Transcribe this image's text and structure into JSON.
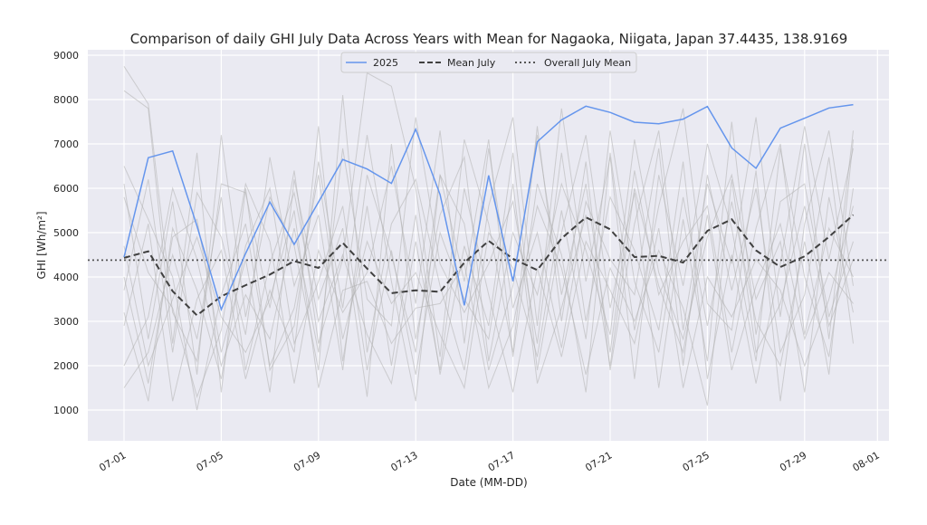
{
  "chart_data": {
    "type": "line",
    "title": "Comparison of daily GHI July Data Across Years with Mean for Nagaoka, Niigata, Japan 37.4435, 138.9169",
    "xlabel": "Date (MM-DD)",
    "ylabel": "GHI [Wh/m²]",
    "x": [
      "07-01",
      "07-02",
      "07-03",
      "07-04",
      "07-05",
      "07-06",
      "07-07",
      "07-08",
      "07-09",
      "07-10",
      "07-11",
      "07-12",
      "07-13",
      "07-14",
      "07-15",
      "07-16",
      "07-17",
      "07-18",
      "07-19",
      "07-20",
      "07-21",
      "07-22",
      "07-23",
      "07-24",
      "07-25",
      "07-26",
      "07-27",
      "07-28",
      "07-29",
      "07-30",
      "07-31"
    ],
    "x_ticks": [
      "07-01",
      "07-05",
      "07-09",
      "07-13",
      "07-17",
      "07-21",
      "07-25",
      "07-29",
      "08-01"
    ],
    "y_ticks": [
      1000,
      2000,
      3000,
      4000,
      5000,
      6000,
      7000,
      8000,
      9000
    ],
    "ylim": [
      300,
      9120
    ],
    "grid": true,
    "legend_placement": "top-center",
    "background_color": "#eaeaf2",
    "series": [
      {
        "name": "2025",
        "color": "#6495ed",
        "style": "solid",
        "values": [
          4450,
          6690,
          6840,
          5150,
          3270,
          4530,
          5690,
          4735,
          5690,
          6650,
          6435,
          6110,
          7330,
          5860,
          3360,
          6290,
          3905,
          7050,
          7540,
          7850,
          7710,
          7490,
          7455,
          7560,
          7845,
          6910,
          6450,
          7355,
          7580,
          7810,
          7885
        ]
      },
      {
        "name": "Mean July",
        "color": "#404040",
        "style": "dashed",
        "values": [
          4430,
          4580,
          3680,
          3135,
          3565,
          3815,
          4055,
          4360,
          4205,
          4770,
          4190,
          3635,
          3700,
          3665,
          4325,
          4815,
          4410,
          4155,
          4870,
          5345,
          5075,
          4450,
          4475,
          4325,
          5040,
          5300,
          4600,
          4225,
          4465,
          4905,
          5400
        ]
      }
    ],
    "reference_lines": [
      {
        "name": "Overall July Mean",
        "value": 4380,
        "color": "#555555",
        "style": "dotted"
      }
    ],
    "background_series": {
      "color": "#b0b0b0",
      "years": [
        [
          8750,
          7900,
          3200,
          2100,
          6100,
          5900,
          3300,
          6400,
          2500,
          4400,
          8600,
          8300,
          6000,
          2200,
          7100,
          5200,
          2300,
          7400,
          3000,
          6600,
          1900,
          5200,
          7300,
          2800,
          6100,
          4300,
          7600,
          3100,
          7000,
          2600,
          7300
        ],
        [
          8200,
          7800,
          2500,
          6800,
          1400,
          6000,
          1900,
          2900,
          6600,
          3300,
          7200,
          3900,
          1200,
          6300,
          3900,
          7100,
          2200,
          6100,
          4500,
          1400,
          6800,
          2800,
          5600,
          7800,
          3400,
          2800,
          6400,
          1200,
          5200,
          7300,
          3800
        ],
        [
          6100,
          2600,
          5700,
          1800,
          7200,
          3100,
          5800,
          4700,
          1900,
          8100,
          2300,
          5200,
          6200,
          3800,
          1900,
          5600,
          7600,
          2900,
          7800,
          3900,
          6700,
          1700,
          6300,
          3800,
          7000,
          5100,
          2100,
          6900,
          4000,
          2200,
          6000
        ],
        [
          4000,
          1600,
          4900,
          5300,
          2300,
          4400,
          1400,
          6200,
          3500,
          5100,
          1300,
          7000,
          2600,
          5400,
          6700,
          2100,
          5000,
          3600,
          6100,
          4600,
          2700,
          7100,
          4100,
          2600,
          4900,
          6300,
          3500,
          4800,
          1400,
          5800,
          3200
        ],
        [
          2900,
          5200,
          1200,
          3500,
          4600,
          1700,
          3700,
          2300,
          7400,
          2100,
          5600,
          2000,
          5400,
          1800,
          4700,
          2900,
          6800,
          1900,
          5000,
          7200,
          3300,
          5900,
          1500,
          5300,
          2100,
          7500,
          2700,
          5700,
          6100,
          3100,
          4800
        ],
        [
          5800,
          4100,
          3300,
          1300,
          2800,
          6100,
          4800,
          1600,
          4600,
          3200,
          4100,
          6500,
          3400,
          7300,
          2500,
          6900,
          3300,
          5000,
          2400,
          5700,
          4400,
          3600,
          6900,
          2000,
          6300,
          3700,
          6000,
          2300,
          3600,
          6700,
          2500
        ],
        [
          2000,
          3100,
          6000,
          4400,
          2000,
          3600,
          2600,
          5100,
          2300,
          6900,
          3500,
          2900,
          7600,
          4300,
          3200,
          4300,
          5700,
          2500,
          6800,
          3000,
          5800,
          4600,
          2800,
          6600,
          1700,
          4500,
          1600,
          4300,
          7400,
          4400,
          6900
        ],
        [
          3700,
          6200,
          2300,
          5900,
          4900,
          2700,
          6700,
          3800,
          5400,
          1900,
          6300,
          4500,
          2300,
          6300,
          5200,
          1900,
          3800,
          7200,
          3600,
          6100,
          2300,
          6400,
          3600,
          4800,
          5600,
          2300,
          5100,
          7000,
          2700,
          5100,
          4000
        ],
        [
          1500,
          2300,
          4500,
          2600,
          5800,
          1900,
          4300,
          5900,
          3000,
          4500,
          2700,
          1600,
          4800,
          1900,
          6000,
          3600,
          1400,
          4200,
          2200,
          4800,
          3700,
          2500,
          5100,
          1500,
          4000,
          3100,
          4400,
          3700,
          2000,
          3500,
          5600
        ],
        [
          6500,
          5300,
          4000,
          1000,
          3600,
          5200,
          2000,
          3300,
          6300,
          2600,
          4800,
          3400,
          4100,
          2700,
          1500,
          5000,
          4200,
          2200,
          5500,
          2600,
          7300,
          3900,
          2300,
          5800,
          2900,
          5700,
          3000,
          2000,
          4800,
          1800,
          7100
        ],
        [
          3200,
          1200,
          5100,
          3700,
          1700,
          4700,
          6000,
          2500,
          3900,
          5600,
          1900,
          4600,
          1800,
          5000,
          3500,
          2600,
          6100,
          1600,
          3300,
          5400,
          2000,
          6000,
          3800,
          2300,
          5400,
          1900,
          3800,
          5200,
          2600,
          4100,
          3400
        ],
        [
          4700,
          2000,
          3500,
          4900,
          3100,
          2300,
          3500,
          5500,
          1500,
          3700,
          3900,
          2500,
          3300,
          3400,
          4300,
          1500,
          2900,
          5600,
          4200,
          1800,
          4200,
          3000,
          4600,
          3300,
          1100,
          6200,
          2300,
          3400,
          5600,
          2900,
          4400
        ]
      ]
    }
  }
}
